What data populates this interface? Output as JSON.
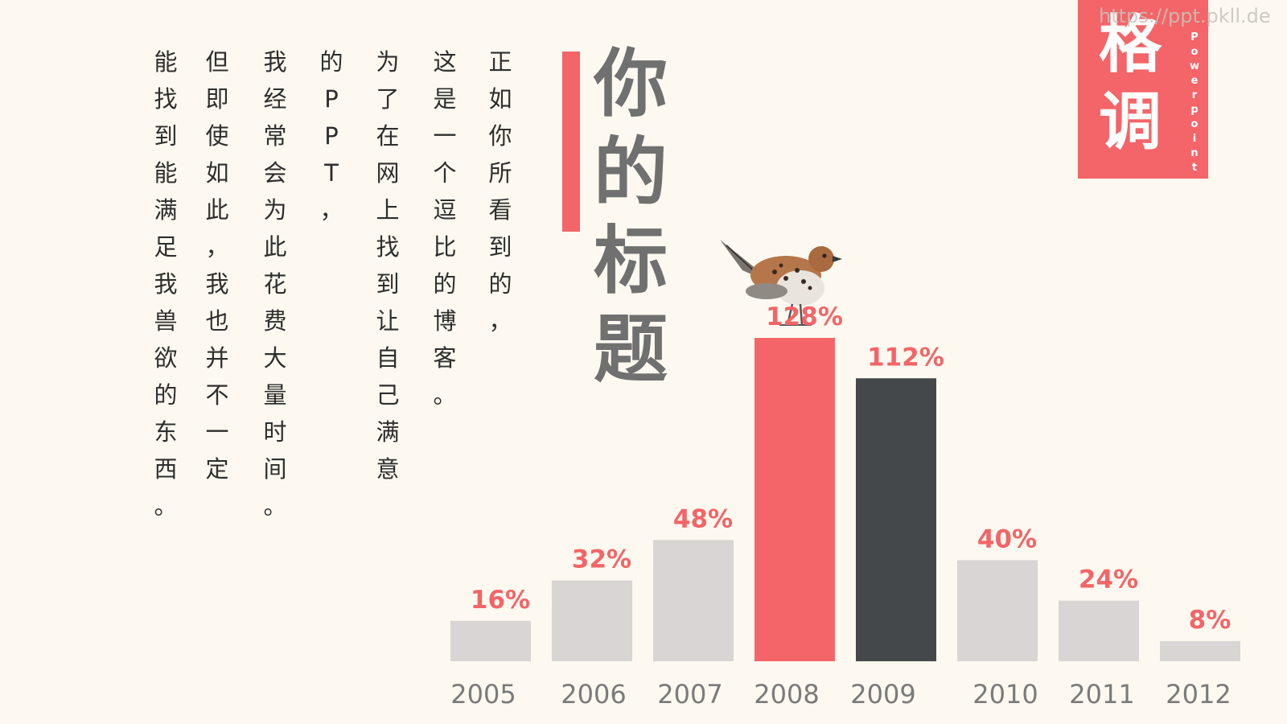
{
  "body_columns": [
    {
      "text": "正如你所看到的，"
    },
    {
      "text": "这是一个逗比的博客。"
    },
    {
      "text": "为了在网上找到让自己满意"
    },
    {
      "text": "的PPT，"
    },
    {
      "text": "我经常会为此花费大量时间。"
    },
    {
      "text": "但即使如此，我也并不一定"
    },
    {
      "text": "能找到能满足我兽欲的东西。"
    }
  ],
  "title": {
    "text": "你的标题"
  },
  "tag": {
    "main": "格调",
    "sub": "Powerpoint"
  },
  "watermark": {
    "text": "https://ppt.pkll.de"
  },
  "colors": {
    "background": "#fdf9f0",
    "accent": "#f36568",
    "dark_bar": "#45484b",
    "light_bar": "#d8d5d4",
    "label": "#f36568",
    "axis_text": "#7a7a7a"
  },
  "illustration": {
    "icon": "sparrow-bird-icon"
  },
  "chart_data": {
    "type": "bar",
    "categories": [
      "2005",
      "2006",
      "2007",
      "2008",
      "2009",
      "2010",
      "2011",
      "2012"
    ],
    "values": [
      16,
      32,
      48,
      128,
      112,
      40,
      24,
      8
    ],
    "data_labels": [
      "16%",
      "32%",
      "48%",
      "128%",
      "112%",
      "40%",
      "24%",
      "8%"
    ],
    "highlight": {
      "2008": "accent",
      "2009": "dark"
    },
    "ylim": [
      0,
      128
    ],
    "grid": false,
    "legend": "none",
    "xlabel": "",
    "ylabel": ""
  }
}
